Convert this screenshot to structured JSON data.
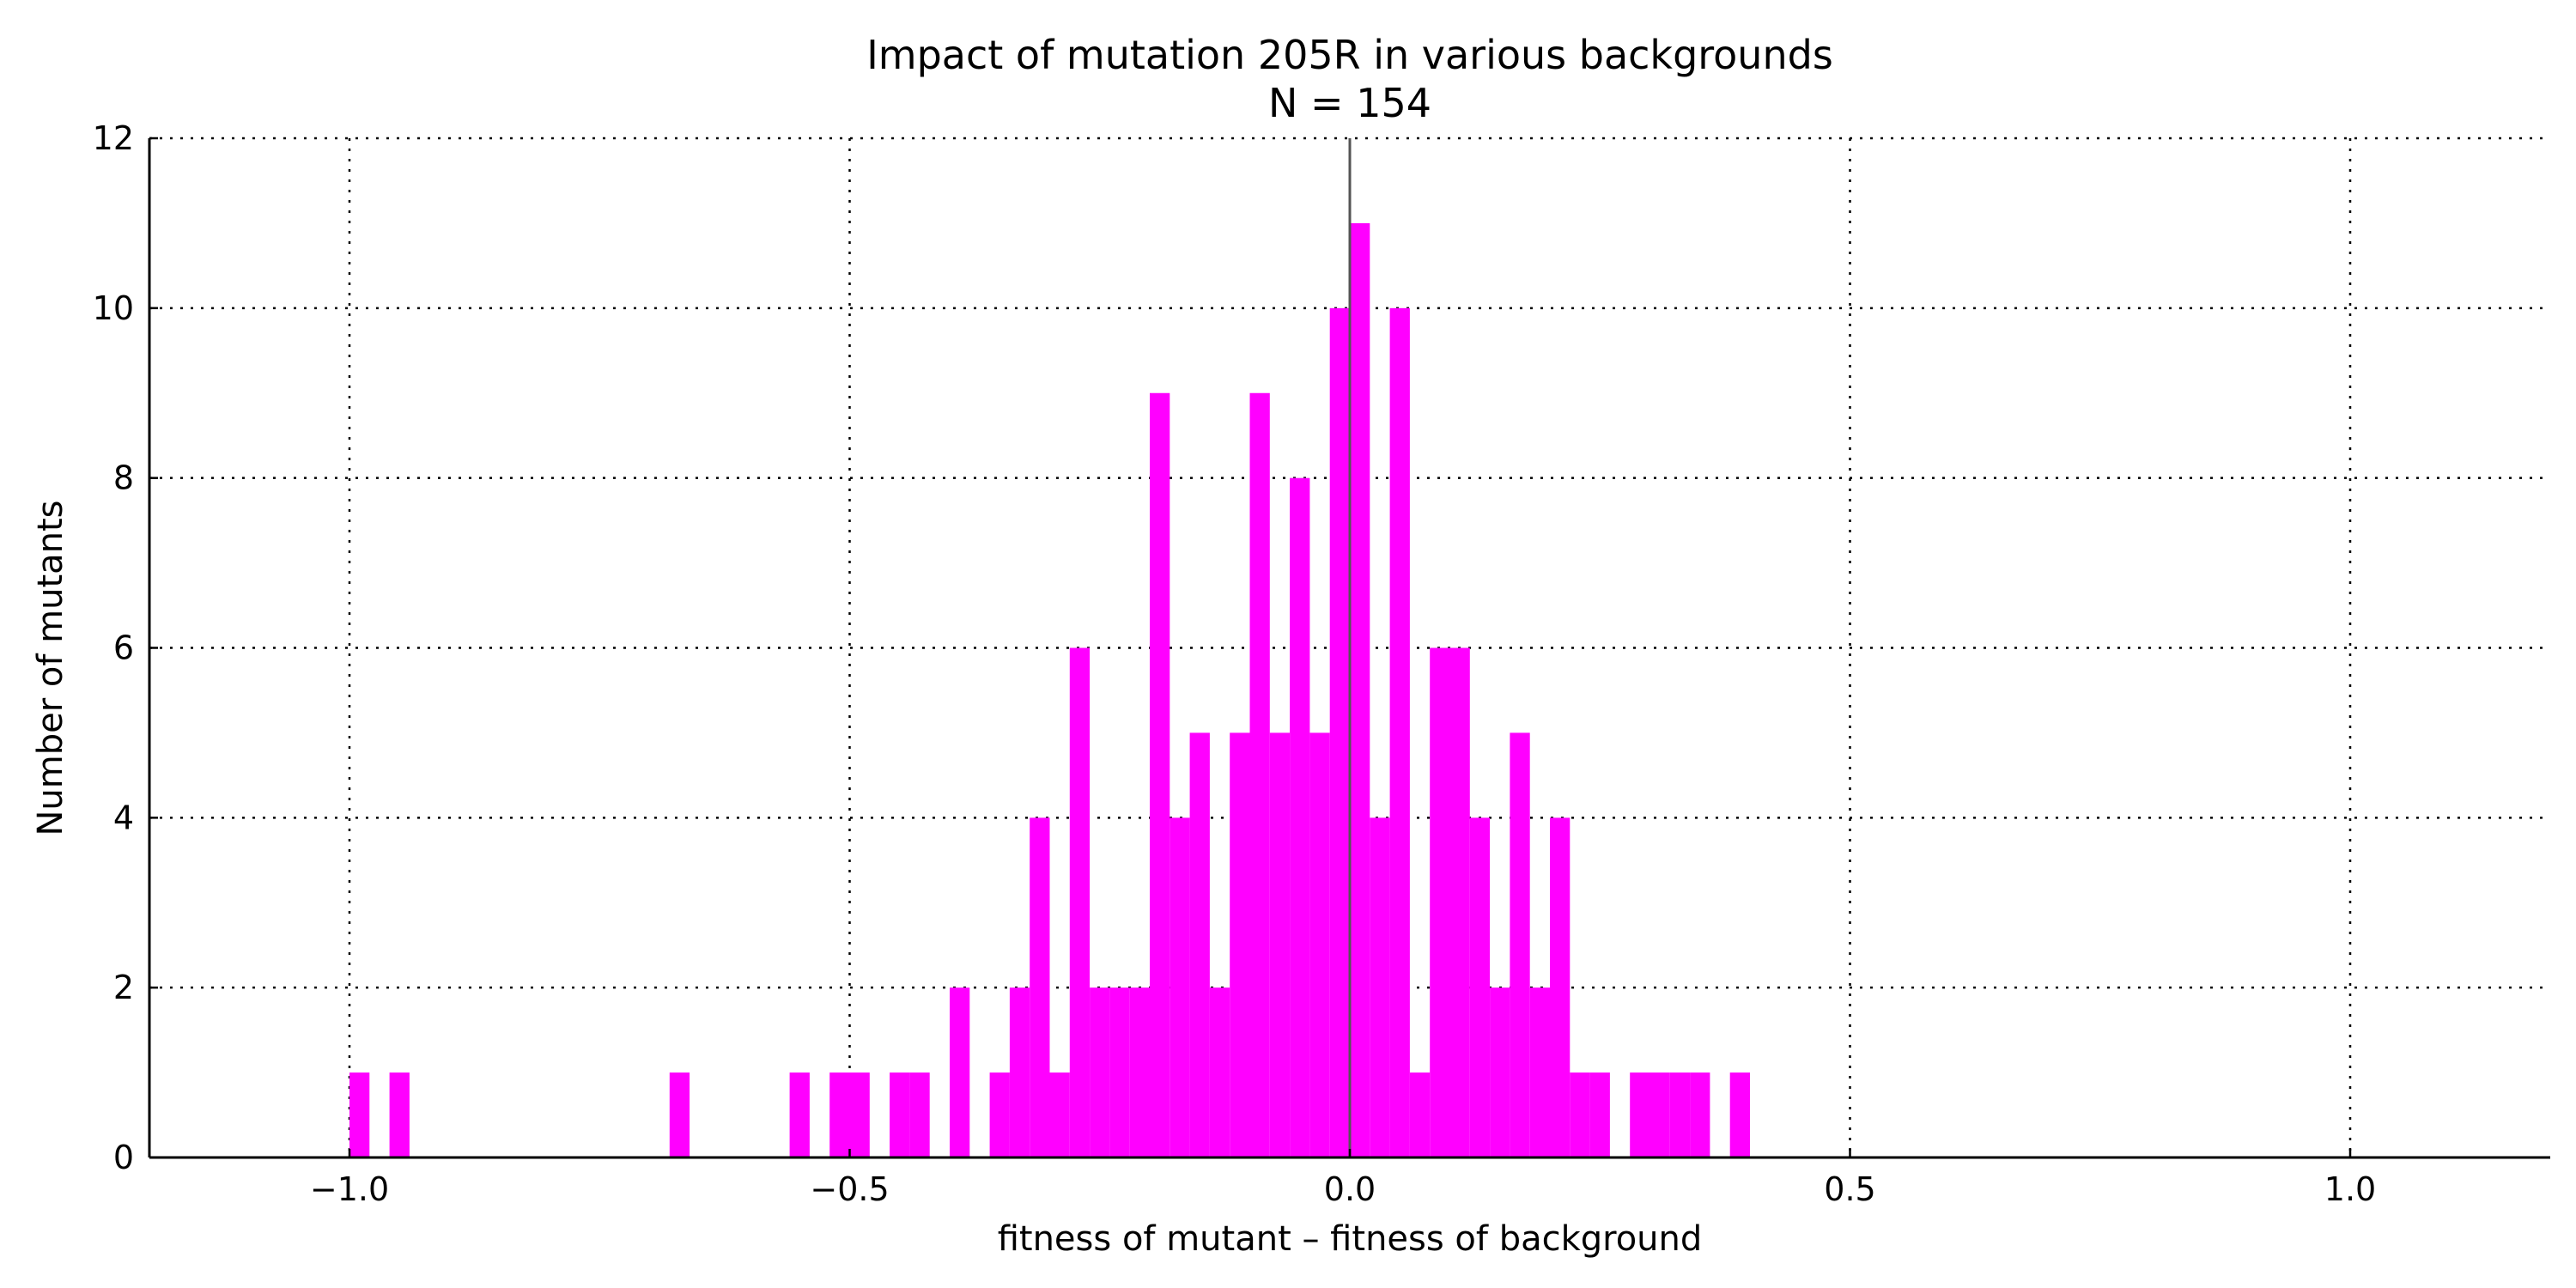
{
  "chart_data": {
    "type": "bar",
    "title": "Impact of mutation 205R in various backgrounds",
    "subtitle": "N = 154",
    "xlabel": "fitness of mutant  –  fitness of background",
    "ylabel": "Number of mutants",
    "xlim": [
      -1.2,
      1.2
    ],
    "ylim": [
      0,
      12
    ],
    "xticks": [
      -1.0,
      -0.5,
      0.0,
      0.5,
      1.0
    ],
    "xtick_labels": [
      "−1.0",
      "−0.5",
      "0.0",
      "0.5",
      "1.0"
    ],
    "yticks": [
      0,
      2,
      4,
      6,
      8,
      10,
      12
    ],
    "ytick_labels": [
      "0",
      "2",
      "4",
      "6",
      "8",
      "10",
      "12"
    ],
    "grid": true,
    "reference_line_x": 0.0,
    "bar_color": "#ff00ff",
    "bin_width": 0.02,
    "bins": [
      {
        "x": -1.0,
        "count": 1
      },
      {
        "x": -0.96,
        "count": 1
      },
      {
        "x": -0.68,
        "count": 1
      },
      {
        "x": -0.56,
        "count": 1
      },
      {
        "x": -0.52,
        "count": 1
      },
      {
        "x": -0.5,
        "count": 1
      },
      {
        "x": -0.46,
        "count": 1
      },
      {
        "x": -0.44,
        "count": 1
      },
      {
        "x": -0.4,
        "count": 2
      },
      {
        "x": -0.36,
        "count": 1
      },
      {
        "x": -0.34,
        "count": 2
      },
      {
        "x": -0.32,
        "count": 4
      },
      {
        "x": -0.3,
        "count": 1
      },
      {
        "x": -0.28,
        "count": 6
      },
      {
        "x": -0.26,
        "count": 2
      },
      {
        "x": -0.24,
        "count": 2
      },
      {
        "x": -0.22,
        "count": 2
      },
      {
        "x": -0.2,
        "count": 9
      },
      {
        "x": -0.18,
        "count": 4
      },
      {
        "x": -0.16,
        "count": 5
      },
      {
        "x": -0.14,
        "count": 2
      },
      {
        "x": -0.12,
        "count": 5
      },
      {
        "x": -0.1,
        "count": 9
      },
      {
        "x": -0.08,
        "count": 5
      },
      {
        "x": -0.06,
        "count": 8
      },
      {
        "x": -0.04,
        "count": 5
      },
      {
        "x": -0.02,
        "count": 10
      },
      {
        "x": 0.0,
        "count": 11
      },
      {
        "x": 0.02,
        "count": 4
      },
      {
        "x": 0.04,
        "count": 10
      },
      {
        "x": 0.06,
        "count": 1
      },
      {
        "x": 0.08,
        "count": 6
      },
      {
        "x": 0.1,
        "count": 6
      },
      {
        "x": 0.12,
        "count": 4
      },
      {
        "x": 0.14,
        "count": 2
      },
      {
        "x": 0.16,
        "count": 5
      },
      {
        "x": 0.18,
        "count": 2
      },
      {
        "x": 0.2,
        "count": 4
      },
      {
        "x": 0.22,
        "count": 1
      },
      {
        "x": 0.24,
        "count": 1
      },
      {
        "x": 0.28,
        "count": 1
      },
      {
        "x": 0.3,
        "count": 1
      },
      {
        "x": 0.32,
        "count": 1
      },
      {
        "x": 0.34,
        "count": 1
      },
      {
        "x": 0.38,
        "count": 1
      }
    ]
  }
}
